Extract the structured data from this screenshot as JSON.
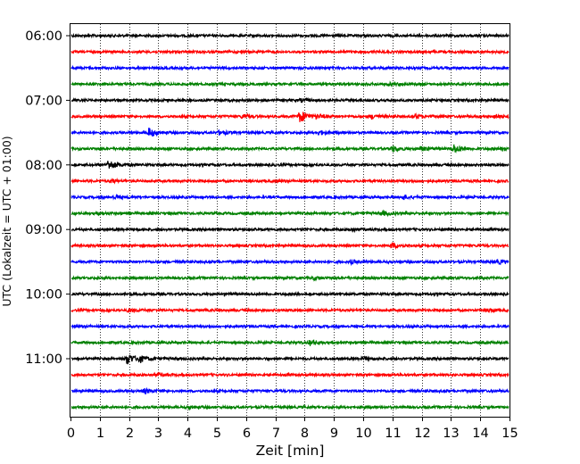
{
  "chart_data": {
    "type": "line",
    "title": "",
    "xlabel": "Zeit  [min]",
    "ylabel": "UTC (Lokalzeit = UTC + 01:00)",
    "xlim": [
      0,
      15
    ],
    "x_ticks": [
      "0",
      "1",
      "2",
      "3",
      "4",
      "5",
      "6",
      "7",
      "8",
      "9",
      "10",
      "11",
      "12",
      "13",
      "14",
      "15"
    ],
    "y_tick_labels": [
      "06:00",
      "07:00",
      "08:00",
      "09:00",
      "10:00",
      "11:00"
    ],
    "grid": "vertical dotted at each minute",
    "trace_interval_min": 15,
    "trace_colors": [
      "#000000",
      "#ff0000",
      "#0000ff",
      "#008000"
    ],
    "traces": [
      {
        "start": "06:00",
        "color": "#000000",
        "events": []
      },
      {
        "start": "06:15",
        "color": "#ff0000",
        "events": []
      },
      {
        "start": "06:30",
        "color": "#0000ff",
        "events": []
      },
      {
        "start": "06:45",
        "color": "#008000",
        "events": [
          {
            "x": 10.9,
            "amp": 1.2
          }
        ]
      },
      {
        "start": "07:00",
        "color": "#000000",
        "events": [
          {
            "x": 7.9,
            "amp": 1.5
          }
        ]
      },
      {
        "start": "07:15",
        "color": "#ff0000",
        "events": [
          {
            "x": 5.9,
            "amp": 2.0
          },
          {
            "x": 7.85,
            "amp": 6.5
          },
          {
            "x": 8.45,
            "amp": 1.6
          },
          {
            "x": 10.3,
            "amp": 2.0
          },
          {
            "x": 11.8,
            "amp": 2.2
          },
          {
            "x": 14.5,
            "amp": 1.8
          }
        ]
      },
      {
        "start": "07:30",
        "color": "#0000ff",
        "events": [
          {
            "x": 2.7,
            "amp": 5.0
          },
          {
            "x": 5.1,
            "amp": 2.0
          },
          {
            "x": 8.5,
            "amp": 2.2
          }
        ]
      },
      {
        "start": "07:45",
        "color": "#008000",
        "events": [
          {
            "x": 11.0,
            "amp": 3.0
          },
          {
            "x": 12.0,
            "amp": 2.2
          },
          {
            "x": 13.1,
            "amp": 4.5
          },
          {
            "x": 14.8,
            "amp": 2.5
          }
        ]
      },
      {
        "start": "08:00",
        "color": "#000000",
        "events": [
          {
            "x": 1.3,
            "amp": 5.0
          }
        ]
      },
      {
        "start": "08:15",
        "color": "#ff0000",
        "events": [
          {
            "x": 1.4,
            "amp": 1.5
          }
        ]
      },
      {
        "start": "08:30",
        "color": "#0000ff",
        "events": [
          {
            "x": 11.4,
            "amp": 2.0
          },
          {
            "x": 1.5,
            "amp": 1.4
          }
        ]
      },
      {
        "start": "08:45",
        "color": "#008000",
        "events": [
          {
            "x": 10.7,
            "amp": 1.8
          },
          {
            "x": 1.0,
            "amp": 1.3
          }
        ]
      },
      {
        "start": "09:00",
        "color": "#000000",
        "events": [
          {
            "x": 9.6,
            "amp": 1.3
          }
        ]
      },
      {
        "start": "09:15",
        "color": "#ff0000",
        "events": [
          {
            "x": 11.0,
            "amp": 2.5
          }
        ]
      },
      {
        "start": "09:30",
        "color": "#0000ff",
        "events": [
          {
            "x": 9.6,
            "amp": 1.6
          },
          {
            "x": 14.6,
            "amp": 1.8
          }
        ]
      },
      {
        "start": "09:45",
        "color": "#008000",
        "events": [
          {
            "x": 8.3,
            "amp": 1.2
          }
        ]
      },
      {
        "start": "10:00",
        "color": "#000000",
        "events": []
      },
      {
        "start": "10:15",
        "color": "#ff0000",
        "events": [
          {
            "x": 2.0,
            "amp": 1.6
          },
          {
            "x": 14.3,
            "amp": 1.4
          }
        ]
      },
      {
        "start": "10:30",
        "color": "#0000ff",
        "events": []
      },
      {
        "start": "10:45",
        "color": "#008000",
        "events": [
          {
            "x": 8.2,
            "amp": 2.8
          }
        ]
      },
      {
        "start": "11:00",
        "color": "#000000",
        "events": [
          {
            "x": 1.95,
            "amp": 6.0
          },
          {
            "x": 2.35,
            "amp": 2.8
          },
          {
            "x": 10.0,
            "amp": 1.6
          }
        ]
      },
      {
        "start": "11:15",
        "color": "#ff0000",
        "events": [
          {
            "x": 3.0,
            "amp": 1.3
          }
        ]
      },
      {
        "start": "11:30",
        "color": "#0000ff",
        "events": [
          {
            "x": 2.55,
            "amp": 2.2
          }
        ]
      },
      {
        "start": "11:45",
        "color": "#008000",
        "events": [
          {
            "x": 4.1,
            "amp": 1.3
          }
        ]
      }
    ]
  }
}
